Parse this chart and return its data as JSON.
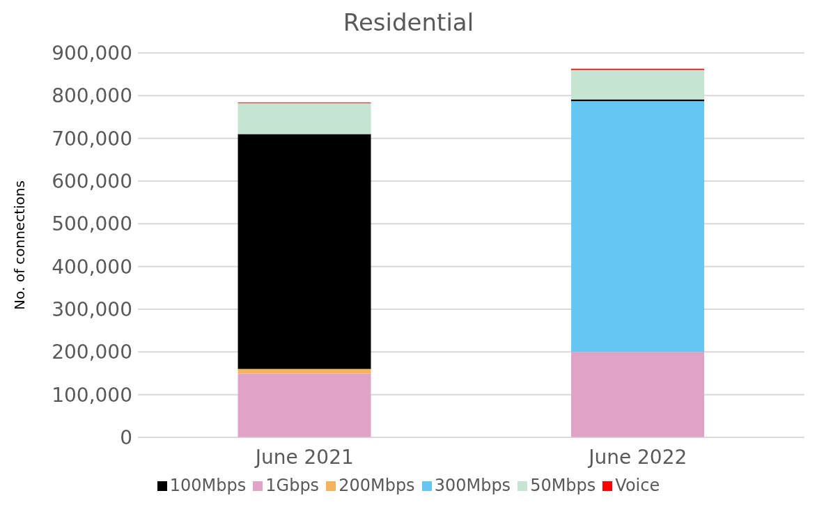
{
  "chart_data": {
    "type": "bar",
    "title": "Residential",
    "ylabel": "No. of connections",
    "categories": [
      "June 2021",
      "June 2022"
    ],
    "stacked": true,
    "ylim": [
      0,
      900000
    ],
    "yticks": [
      {
        "value": 0,
        "label": "0"
      },
      {
        "value": 100000,
        "label": "100,000"
      },
      {
        "value": 200000,
        "label": "200,000"
      },
      {
        "value": 300000,
        "label": "300,000"
      },
      {
        "value": 400000,
        "label": "400,000"
      },
      {
        "value": 500000,
        "label": "500,000"
      },
      {
        "value": 600000,
        "label": "600,000"
      },
      {
        "value": 700000,
        "label": "700,000"
      },
      {
        "value": 800000,
        "label": "800,000"
      },
      {
        "value": 900000,
        "label": "900,000"
      }
    ],
    "grid": "y",
    "legend": "bottom",
    "series": [
      {
        "name": "1Gbps",
        "color": "#e0a3c8",
        "values": [
          149000,
          200000
        ]
      },
      {
        "name": "300Mbps",
        "color": "#65c6f3",
        "values": [
          0,
          587000
        ]
      },
      {
        "name": "200Mbps",
        "color": "#f4b45f",
        "values": [
          11000,
          0
        ]
      },
      {
        "name": "100Mbps",
        "color": "#000000",
        "values": [
          550000,
          4000
        ]
      },
      {
        "name": "50Mbps",
        "color": "#c5e4d2",
        "values": [
          72000,
          69000
        ]
      },
      {
        "name": "Voice",
        "color": "#ff0000",
        "values": [
          2000,
          3000
        ]
      }
    ]
  }
}
